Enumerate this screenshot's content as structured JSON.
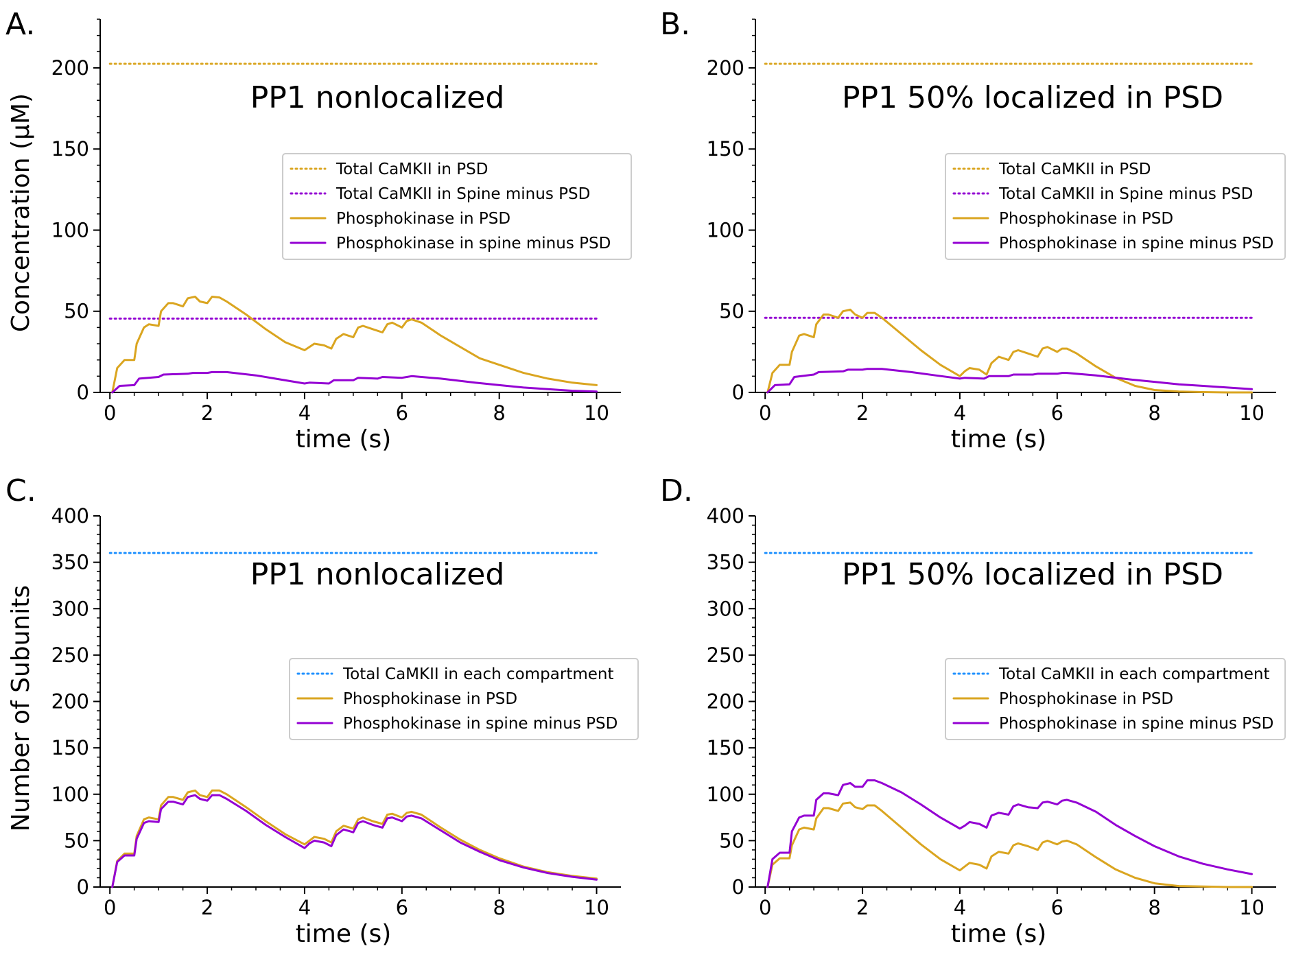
{
  "chart_data": [
    {
      "panel_label": "A.",
      "type": "line",
      "title": "PP1 nonlocalized",
      "xlabel": "time (s)",
      "ylabel": "Concentration (μM)",
      "xlim": [
        -0.2,
        10.5
      ],
      "ylim": [
        0,
        230
      ],
      "xticks": [
        "0",
        "2",
        "4",
        "6",
        "8",
        "10"
      ],
      "yticks": [
        "0",
        "50",
        "100",
        "150",
        "200"
      ],
      "legend_position": "right",
      "colors": {
        "gold": "#DAA520",
        "purple": "#9400D3",
        "blue": "#1E90FF"
      },
      "series": [
        {
          "name": "Total CaMKII in PSD",
          "style": "dotted",
          "color": "#DAA520",
          "x": [
            0,
            10
          ],
          "y": [
            202.5,
            202.5
          ]
        },
        {
          "name": "Total CaMKII in Spine minus PSD",
          "style": "dotted",
          "color": "#9400D3",
          "x": [
            0,
            10
          ],
          "y": [
            45.5,
            45.5
          ]
        },
        {
          "name": "Phosphokinase in PSD",
          "style": "solid",
          "color": "#DAA520",
          "x": [
            0.05,
            0.15,
            0.3,
            0.5,
            0.55,
            0.7,
            0.8,
            1.0,
            1.05,
            1.2,
            1.3,
            1.5,
            1.6,
            1.75,
            1.85,
            2.0,
            2.1,
            2.25,
            2.4,
            2.8,
            3.2,
            3.6,
            4.0,
            4.1,
            4.2,
            4.4,
            4.55,
            4.65,
            4.8,
            5.0,
            5.1,
            5.2,
            5.4,
            5.6,
            5.7,
            5.8,
            6.0,
            6.1,
            6.2,
            6.4,
            6.8,
            7.2,
            7.6,
            8.0,
            8.5,
            9.0,
            9.5,
            10.0
          ],
          "y": [
            0,
            15,
            20,
            20,
            30,
            40,
            42,
            41,
            50,
            55,
            55,
            53,
            58,
            59,
            56,
            55,
            59,
            58.5,
            56,
            48,
            39,
            31,
            26,
            28,
            30,
            29,
            27,
            33,
            36,
            34,
            40,
            41,
            39,
            37,
            42,
            43,
            40,
            44,
            45,
            43,
            35,
            28,
            21,
            17,
            12,
            8.5,
            6,
            4.5
          ]
        },
        {
          "name": "Phosphokinase in spine minus PSD",
          "style": "solid",
          "color": "#9400D3",
          "x": [
            0.05,
            0.2,
            0.5,
            0.6,
            1.0,
            1.1,
            1.6,
            1.7,
            2.0,
            2.1,
            2.4,
            3.0,
            3.5,
            4.0,
            4.1,
            4.5,
            4.6,
            5.0,
            5.1,
            5.5,
            5.6,
            6.0,
            6.1,
            6.2,
            6.8,
            7.5,
            8.0,
            8.5,
            9.0,
            9.5,
            10.0
          ],
          "y": [
            0,
            4,
            4.5,
            8.5,
            9.5,
            11,
            11.5,
            12,
            12,
            12.5,
            12.5,
            10.5,
            8,
            5.5,
            6,
            5.5,
            7.5,
            7.5,
            9,
            8.5,
            9.5,
            9,
            9.5,
            10,
            8.5,
            6,
            4.5,
            3,
            2,
            1,
            0.5
          ]
        }
      ]
    },
    {
      "panel_label": "B.",
      "type": "line",
      "title": "PP1 50% localized in PSD",
      "xlabel": "time (s)",
      "ylabel": "",
      "xlim": [
        -0.2,
        10.5
      ],
      "ylim": [
        0,
        230
      ],
      "xticks": [
        "0",
        "2",
        "4",
        "6",
        "8",
        "10"
      ],
      "yticks": [
        "0",
        "50",
        "100",
        "150",
        "200"
      ],
      "legend_position": "right",
      "series": [
        {
          "name": "Total CaMKII in PSD",
          "style": "dotted",
          "color": "#DAA520",
          "x": [
            0,
            10
          ],
          "y": [
            202.5,
            202.5
          ]
        },
        {
          "name": "Total CaMKII in Spine minus PSD",
          "style": "dotted",
          "color": "#9400D3",
          "x": [
            0,
            10
          ],
          "y": [
            46,
            46
          ]
        },
        {
          "name": "Phosphokinase in PSD",
          "style": "solid",
          "color": "#DAA520",
          "x": [
            0.05,
            0.15,
            0.3,
            0.5,
            0.55,
            0.7,
            0.8,
            1.0,
            1.05,
            1.2,
            1.3,
            1.5,
            1.6,
            1.75,
            1.85,
            2.0,
            2.1,
            2.25,
            2.4,
            2.8,
            3.2,
            3.6,
            4.0,
            4.1,
            4.2,
            4.4,
            4.55,
            4.65,
            4.8,
            5.0,
            5.1,
            5.2,
            5.4,
            5.6,
            5.7,
            5.8,
            6.0,
            6.1,
            6.2,
            6.4,
            6.8,
            7.2,
            7.6,
            8.0,
            8.5,
            9.0,
            9.5,
            10.0
          ],
          "y": [
            0,
            12,
            17,
            17,
            25,
            35,
            36,
            34,
            42,
            48,
            48,
            46,
            50,
            51,
            48,
            46,
            49,
            49,
            46,
            36,
            26,
            17,
            10,
            13,
            15,
            14,
            11,
            18,
            22,
            20,
            25,
            26,
            24,
            22,
            27,
            28,
            25,
            27,
            27,
            24,
            16,
            9,
            4,
            1.5,
            0.5,
            0.2,
            0,
            0
          ]
        },
        {
          "name": "Phosphokinase in spine minus PSD",
          "style": "solid",
          "color": "#9400D3",
          "x": [
            0.05,
            0.2,
            0.5,
            0.6,
            1.0,
            1.1,
            1.6,
            1.7,
            2.0,
            2.1,
            2.4,
            3.0,
            3.5,
            4.0,
            4.1,
            4.5,
            4.6,
            5.0,
            5.1,
            5.5,
            5.6,
            6.0,
            6.1,
            6.2,
            6.8,
            7.5,
            8.0,
            8.5,
            9.0,
            9.5,
            10.0
          ],
          "y": [
            0,
            4.5,
            5,
            9.5,
            11,
            12.5,
            13,
            14,
            14,
            14.5,
            14.5,
            12.5,
            10.5,
            8.5,
            9,
            8.5,
            10,
            10,
            11,
            11,
            11.5,
            11.5,
            12,
            12,
            10.5,
            8,
            6.5,
            5,
            4,
            3,
            2
          ]
        }
      ]
    },
    {
      "panel_label": "C.",
      "type": "line",
      "title": "PP1 nonlocalized",
      "xlabel": "time (s)",
      "ylabel": "Number of Subunits",
      "xlim": [
        -0.2,
        10.5
      ],
      "ylim": [
        0,
        400
      ],
      "xticks": [
        "0",
        "2",
        "4",
        "6",
        "8",
        "10"
      ],
      "yticks": [
        "0",
        "50",
        "100",
        "150",
        "200",
        "250",
        "300",
        "350",
        "400"
      ],
      "legend_position": "right",
      "series": [
        {
          "name": "Total CaMKII in each compartment",
          "style": "dotted",
          "color": "#1E90FF",
          "x": [
            0,
            10
          ],
          "y": [
            360,
            360
          ]
        },
        {
          "name": "Phosphokinase in PSD",
          "style": "solid",
          "color": "#DAA520",
          "x": [
            0.05,
            0.15,
            0.3,
            0.5,
            0.55,
            0.7,
            0.8,
            1.0,
            1.05,
            1.2,
            1.3,
            1.5,
            1.6,
            1.75,
            1.85,
            2.0,
            2.1,
            2.25,
            2.4,
            2.8,
            3.2,
            3.6,
            4.0,
            4.1,
            4.2,
            4.4,
            4.55,
            4.65,
            4.8,
            5.0,
            5.1,
            5.2,
            5.4,
            5.6,
            5.7,
            5.8,
            6.0,
            6.1,
            6.2,
            6.4,
            6.8,
            7.2,
            7.6,
            8.0,
            8.5,
            9.0,
            9.5,
            10.0
          ],
          "y": [
            0,
            28,
            36,
            36,
            55,
            73,
            75,
            73,
            88,
            97,
            97,
            94,
            102,
            104,
            99,
            97,
            104,
            104,
            100,
            86,
            71,
            57,
            46,
            50,
            54,
            52,
            48,
            60,
            66,
            63,
            73,
            75,
            71,
            68,
            78,
            79,
            75,
            80,
            81,
            78,
            64,
            51,
            40,
            31,
            22,
            16,
            12,
            9
          ]
        },
        {
          "name": "Phosphokinase in spine minus PSD",
          "style": "solid",
          "color": "#9400D3",
          "x": [
            0.05,
            0.15,
            0.3,
            0.5,
            0.55,
            0.7,
            0.8,
            1.0,
            1.05,
            1.2,
            1.3,
            1.5,
            1.6,
            1.75,
            1.85,
            2.0,
            2.1,
            2.25,
            2.4,
            2.8,
            3.2,
            3.6,
            4.0,
            4.1,
            4.2,
            4.4,
            4.55,
            4.65,
            4.8,
            5.0,
            5.1,
            5.2,
            5.4,
            5.6,
            5.7,
            5.8,
            6.0,
            6.1,
            6.2,
            6.4,
            6.8,
            7.2,
            7.6,
            8.0,
            8.5,
            9.0,
            9.5,
            10.0
          ],
          "y": [
            0,
            27,
            34,
            34,
            52,
            69,
            71,
            70,
            84,
            92,
            92,
            89,
            97,
            99,
            95,
            93,
            99,
            99,
            95,
            82,
            67,
            54,
            42,
            47,
            50,
            48,
            44,
            56,
            62,
            59,
            69,
            71,
            67,
            64,
            74,
            75,
            71,
            76,
            77,
            74,
            61,
            48,
            38,
            29,
            21,
            15,
            11,
            8
          ]
        }
      ]
    },
    {
      "panel_label": "D.",
      "type": "line",
      "title": "PP1 50% localized in PSD",
      "xlabel": "time (s)",
      "ylabel": "",
      "xlim": [
        -0.2,
        10.5
      ],
      "ylim": [
        0,
        400
      ],
      "xticks": [
        "0",
        "2",
        "4",
        "6",
        "8",
        "10"
      ],
      "yticks": [
        "0",
        "50",
        "100",
        "150",
        "200",
        "250",
        "300",
        "350",
        "400"
      ],
      "legend_position": "right",
      "series": [
        {
          "name": "Total CaMKII in each compartment",
          "style": "dotted",
          "color": "#1E90FF",
          "x": [
            0,
            10
          ],
          "y": [
            360,
            360
          ]
        },
        {
          "name": "Phosphokinase in PSD",
          "style": "solid",
          "color": "#DAA520",
          "x": [
            0.05,
            0.15,
            0.3,
            0.5,
            0.55,
            0.7,
            0.8,
            1.0,
            1.05,
            1.2,
            1.3,
            1.5,
            1.6,
            1.75,
            1.85,
            2.0,
            2.1,
            2.25,
            2.4,
            2.8,
            3.2,
            3.6,
            4.0,
            4.1,
            4.2,
            4.4,
            4.55,
            4.65,
            4.8,
            5.0,
            5.1,
            5.2,
            5.4,
            5.6,
            5.7,
            5.8,
            6.0,
            6.1,
            6.2,
            6.4,
            6.8,
            7.2,
            7.6,
            8.0,
            8.5,
            9.0,
            9.5,
            10.0
          ],
          "y": [
            0,
            24,
            31,
            31,
            45,
            62,
            64,
            62,
            74,
            85,
            85,
            82,
            90,
            91,
            86,
            84,
            88,
            88,
            82,
            64,
            46,
            30,
            18,
            22,
            26,
            24,
            20,
            33,
            38,
            36,
            45,
            47,
            44,
            40,
            48,
            50,
            46,
            49,
            50,
            46,
            32,
            19,
            10,
            4,
            1,
            0.5,
            0,
            0
          ]
        },
        {
          "name": "Phosphokinase in spine minus PSD",
          "style": "solid",
          "color": "#9400D3",
          "x": [
            0.05,
            0.15,
            0.3,
            0.5,
            0.55,
            0.7,
            0.8,
            1.0,
            1.05,
            1.2,
            1.3,
            1.5,
            1.6,
            1.75,
            1.85,
            2.0,
            2.1,
            2.25,
            2.4,
            2.8,
            3.2,
            3.6,
            4.0,
            4.1,
            4.2,
            4.4,
            4.55,
            4.65,
            4.8,
            5.0,
            5.1,
            5.2,
            5.4,
            5.6,
            5.7,
            5.8,
            6.0,
            6.1,
            6.2,
            6.4,
            6.8,
            7.2,
            7.6,
            8.0,
            8.5,
            9.0,
            9.5,
            10.0
          ],
          "y": [
            0,
            30,
            37,
            37,
            60,
            75,
            77,
            77,
            94,
            101,
            101,
            99,
            110,
            112,
            108,
            108,
            115,
            115,
            112,
            102,
            89,
            75,
            63,
            66,
            70,
            68,
            64,
            77,
            80,
            78,
            87,
            89,
            86,
            85,
            91,
            92,
            89,
            93,
            94,
            91,
            81,
            67,
            55,
            44,
            33,
            25,
            19,
            14
          ]
        }
      ]
    }
  ]
}
